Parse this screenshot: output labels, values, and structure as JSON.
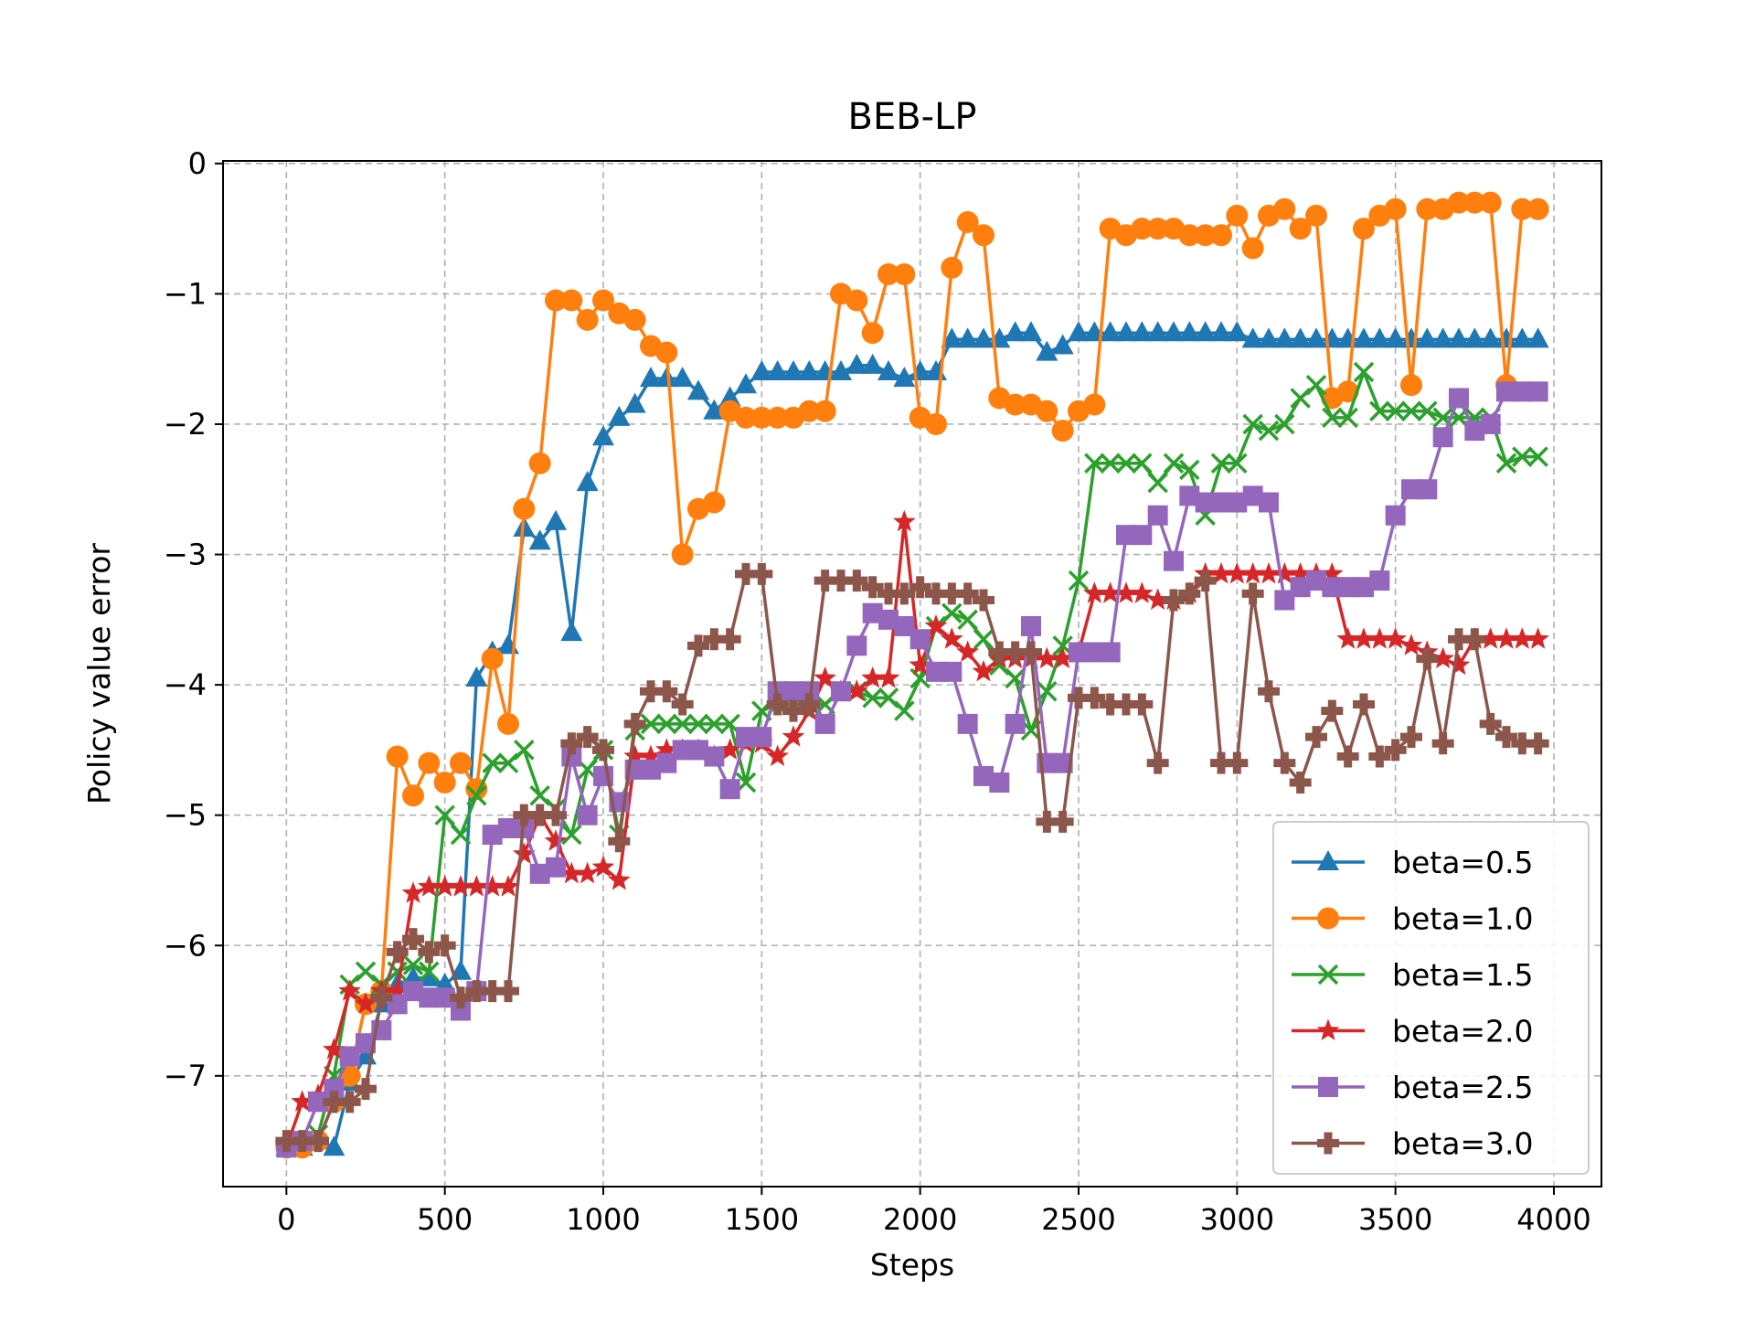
{
  "chart_data": {
    "type": "line",
    "title": "BEB-LP",
    "xlabel": "Steps",
    "ylabel": "Policy value error",
    "xlim": [
      -200,
      4150
    ],
    "ylim": [
      -7.85,
      0.02
    ],
    "xticks": [
      0,
      500,
      1000,
      1500,
      2000,
      2500,
      3000,
      3500,
      4000
    ],
    "xtick_labels": [
      "0",
      "500",
      "1000",
      "1500",
      "2000",
      "2500",
      "3000",
      "3500",
      "4000"
    ],
    "yticks": [
      0,
      -1,
      -2,
      -3,
      -4,
      -5,
      -6,
      -7
    ],
    "ytick_labels": [
      "0",
      "−1",
      "−2",
      "−3",
      "−4",
      "−5",
      "−6",
      "−7"
    ],
    "grid": true,
    "legend_position": "lower-right",
    "x": [
      0,
      50,
      100,
      150,
      200,
      250,
      300,
      350,
      400,
      450,
      500,
      550,
      600,
      650,
      700,
      750,
      800,
      850,
      900,
      950,
      1000,
      1050,
      1100,
      1150,
      1200,
      1250,
      1300,
      1350,
      1400,
      1450,
      1500,
      1550,
      1600,
      1650,
      1700,
      1750,
      1800,
      1850,
      1900,
      1950,
      2000,
      2050,
      2100,
      2150,
      2200,
      2250,
      2300,
      2350,
      2400,
      2450,
      2500,
      2550,
      2600,
      2650,
      2700,
      2750,
      2800,
      2850,
      2900,
      2950,
      3000,
      3050,
      3100,
      3150,
      3200,
      3250,
      3300,
      3350,
      3400,
      3450,
      3500,
      3550,
      3600,
      3650,
      3700,
      3750,
      3800,
      3850,
      3900,
      3950
    ],
    "series": [
      {
        "name": "beta=0.5",
        "color": "#1f77b4",
        "marker": "triangle",
        "values": [
          -7.55,
          -7.55,
          -7.5,
          -7.55,
          -7.05,
          -6.85,
          -6.45,
          -6.3,
          -6.25,
          -6.25,
          -6.3,
          -6.2,
          -3.95,
          -3.75,
          -3.7,
          -2.8,
          -2.9,
          -2.75,
          -3.6,
          -2.45,
          -2.1,
          -1.95,
          -1.85,
          -1.65,
          -1.65,
          -1.65,
          -1.75,
          -1.9,
          -1.8,
          -1.7,
          -1.6,
          -1.6,
          -1.6,
          -1.6,
          -1.6,
          -1.6,
          -1.55,
          -1.55,
          -1.6,
          -1.65,
          -1.6,
          -1.6,
          -1.35,
          -1.35,
          -1.35,
          -1.35,
          -1.3,
          -1.3,
          -1.45,
          -1.4,
          -1.3,
          -1.3,
          -1.3,
          -1.3,
          -1.3,
          -1.3,
          -1.3,
          -1.3,
          -1.3,
          -1.3,
          -1.3,
          -1.35,
          -1.35,
          -1.35,
          -1.35,
          -1.35,
          -1.35,
          -1.35,
          -1.35,
          -1.35,
          -1.35,
          -1.35,
          -1.35,
          -1.35,
          -1.35,
          -1.35,
          -1.35,
          -1.35,
          -1.35,
          -1.35
        ]
      },
      {
        "name": "beta=1.0",
        "color": "#ff7f0e",
        "marker": "circle",
        "values": [
          -7.55,
          -7.55,
          -7.5,
          -7.2,
          -7.0,
          -6.45,
          -6.35,
          -4.55,
          -4.85,
          -4.6,
          -4.75,
          -4.6,
          -4.8,
          -3.8,
          -4.3,
          -2.65,
          -2.3,
          -1.05,
          -1.05,
          -1.2,
          -1.05,
          -1.15,
          -1.2,
          -1.4,
          -1.45,
          -3.0,
          -2.65,
          -2.6,
          -1.9,
          -1.95,
          -1.95,
          -1.95,
          -1.95,
          -1.9,
          -1.9,
          -1.0,
          -1.05,
          -1.3,
          -0.85,
          -0.85,
          -1.95,
          -2.0,
          -0.8,
          -0.45,
          -0.55,
          -1.8,
          -1.85,
          -1.85,
          -1.9,
          -2.05,
          -1.9,
          -1.85,
          -0.5,
          -0.55,
          -0.5,
          -0.5,
          -0.5,
          -0.55,
          -0.55,
          -0.55,
          -0.4,
          -0.65,
          -0.4,
          -0.35,
          -0.5,
          -0.4,
          -1.8,
          -1.75,
          -0.5,
          -0.4,
          -0.35,
          -1.7,
          -0.35,
          -0.35,
          -0.3,
          -0.3,
          -0.3,
          -1.7,
          -0.35,
          -0.35
        ]
      },
      {
        "name": "beta=1.5",
        "color": "#2ca02c",
        "marker": "x",
        "values": [
          -7.55,
          -7.5,
          -7.45,
          -7.0,
          -6.3,
          -6.2,
          -6.3,
          -6.2,
          -6.15,
          -6.2,
          -5.0,
          -5.15,
          -4.85,
          -4.6,
          -4.6,
          -4.5,
          -4.85,
          -4.95,
          -5.15,
          -4.65,
          -4.5,
          -5.15,
          -4.35,
          -4.3,
          -4.3,
          -4.3,
          -4.3,
          -4.3,
          -4.3,
          -4.75,
          -4.2,
          -4.15,
          -4.15,
          -4.15,
          -4.15,
          -4.05,
          -4.05,
          -4.1,
          -4.1,
          -4.2,
          -3.95,
          -3.55,
          -3.45,
          -3.5,
          -3.65,
          -3.85,
          -3.95,
          -4.35,
          -4.05,
          -3.7,
          -3.2,
          -2.3,
          -2.3,
          -2.3,
          -2.3,
          -2.45,
          -2.3,
          -2.35,
          -2.7,
          -2.3,
          -2.3,
          -2.0,
          -2.05,
          -2.0,
          -1.8,
          -1.7,
          -1.95,
          -1.95,
          -1.6,
          -1.9,
          -1.9,
          -1.9,
          -1.9,
          -1.95,
          -1.95,
          -1.95,
          -1.95,
          -2.3,
          -2.25,
          -2.25
        ]
      },
      {
        "name": "beta=2.0",
        "color": "#d62728",
        "marker": "star",
        "values": [
          -7.55,
          -7.2,
          -7.15,
          -6.8,
          -6.35,
          -6.45,
          -6.35,
          -6.35,
          -5.6,
          -5.55,
          -5.55,
          -5.55,
          -5.55,
          -5.55,
          -5.55,
          -5.3,
          -5.0,
          -5.2,
          -5.45,
          -5.45,
          -5.4,
          -5.5,
          -4.55,
          -4.55,
          -4.5,
          -4.5,
          -4.5,
          -4.55,
          -4.5,
          -4.45,
          -4.45,
          -4.55,
          -4.4,
          -4.2,
          -3.95,
          -4.05,
          -4.05,
          -3.95,
          -3.95,
          -2.75,
          -3.85,
          -3.55,
          -3.65,
          -3.75,
          -3.9,
          -3.8,
          -3.8,
          -3.8,
          -3.8,
          -3.8,
          -3.75,
          -3.3,
          -3.3,
          -3.3,
          -3.3,
          -3.35,
          -3.35,
          -3.3,
          -3.15,
          -3.15,
          -3.15,
          -3.15,
          -3.15,
          -3.15,
          -3.15,
          -3.15,
          -3.15,
          -3.65,
          -3.65,
          -3.65,
          -3.65,
          -3.7,
          -3.75,
          -3.8,
          -3.85,
          -3.65,
          -3.65,
          -3.65,
          -3.65,
          -3.65
        ]
      },
      {
        "name": "beta=2.5",
        "color": "#9467bd",
        "marker": "square",
        "values": [
          -7.55,
          -7.5,
          -7.2,
          -7.1,
          -6.85,
          -6.75,
          -6.65,
          -6.45,
          -6.35,
          -6.4,
          -6.4,
          -6.5,
          -6.35,
          -5.15,
          -5.1,
          -5.1,
          -5.45,
          -5.4,
          -4.55,
          -5.0,
          -4.7,
          -4.9,
          -4.65,
          -4.65,
          -4.6,
          -4.5,
          -4.5,
          -4.55,
          -4.8,
          -4.4,
          -4.4,
          -4.05,
          -4.05,
          -4.05,
          -4.3,
          -4.05,
          -3.7,
          -3.45,
          -3.5,
          -3.55,
          -3.65,
          -3.9,
          -3.9,
          -4.3,
          -4.7,
          -4.75,
          -4.3,
          -3.55,
          -4.6,
          -4.6,
          -3.75,
          -3.75,
          -3.75,
          -2.85,
          -2.85,
          -2.7,
          -3.05,
          -2.55,
          -2.6,
          -2.6,
          -2.6,
          -2.55,
          -2.6,
          -3.35,
          -3.25,
          -3.2,
          -3.25,
          -3.25,
          -3.25,
          -3.2,
          -2.7,
          -2.5,
          -2.5,
          -2.1,
          -1.8,
          -2.05,
          -2.0,
          -1.75,
          -1.75,
          -1.75
        ]
      },
      {
        "name": "beta=3.0",
        "color": "#8c564b",
        "marker": "plus",
        "values": [
          -7.5,
          -7.5,
          -7.5,
          -7.2,
          -7.2,
          -7.1,
          -6.4,
          -6.05,
          -5.95,
          -6.05,
          -6.0,
          -6.4,
          -6.35,
          -6.35,
          -6.35,
          -5.0,
          -5.0,
          -5.0,
          -4.45,
          -4.4,
          -4.5,
          -5.2,
          -4.3,
          -4.05,
          -4.05,
          -4.15,
          -3.7,
          -3.65,
          -3.65,
          -3.15,
          -3.15,
          -4.15,
          -4.2,
          -4.15,
          -3.2,
          -3.2,
          -3.2,
          -3.25,
          -3.3,
          -3.3,
          -3.25,
          -3.3,
          -3.3,
          -3.3,
          -3.35,
          -3.75,
          -3.75,
          -3.75,
          -5.05,
          -5.05,
          -4.1,
          -4.1,
          -4.15,
          -4.15,
          -4.15,
          -4.6,
          -3.35,
          -3.3,
          -3.2,
          -4.6,
          -4.6,
          -3.3,
          -4.05,
          -4.6,
          -4.75,
          -4.4,
          -4.2,
          -4.55,
          -4.15,
          -4.55,
          -4.5,
          -4.4,
          -3.8,
          -4.45,
          -3.65,
          -3.65,
          -4.3,
          -4.4,
          -4.45,
          -4.45
        ]
      }
    ]
  }
}
